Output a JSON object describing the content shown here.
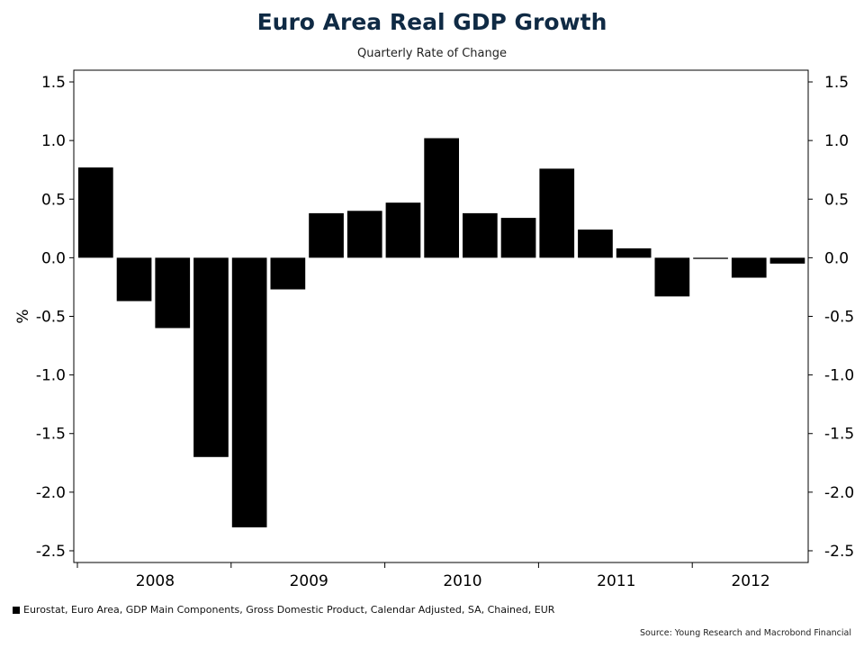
{
  "chart_data": {
    "type": "bar",
    "title": "Euro Area Real GDP Growth",
    "subtitle": "Quarterly Rate of Change",
    "ylabel": "%",
    "ylim": [
      -2.6,
      1.6
    ],
    "yticks": [
      1.5,
      1.0,
      0.5,
      0.0,
      -0.5,
      -1.0,
      -1.5,
      -2.0,
      -2.5
    ],
    "ytick_labels": [
      "1.5",
      "1.0",
      "0.5",
      "0.0",
      "-0.5",
      "-1.0",
      "-1.5",
      "-2.0",
      "-2.5"
    ],
    "year_labels": [
      "2008",
      "2009",
      "2010",
      "2011",
      "2012"
    ],
    "quarters_per_year": 4,
    "series": [
      {
        "name": "Eurostat, Euro Area, GDP Main Components, Gross Domestic Product, Calendar Adjusted, SA, Chained, EUR",
        "color": "#000000",
        "values": [
          0.77,
          -0.37,
          -0.6,
          -1.7,
          -2.3,
          -0.27,
          0.38,
          0.4,
          0.47,
          1.02,
          0.38,
          0.34,
          0.76,
          0.24,
          0.08,
          -0.33,
          -0.01,
          -0.17,
          -0.05
        ]
      }
    ],
    "grid": false,
    "legend_position": "bottom-left"
  },
  "source_text": "Source: Young Research and Macrobond Financial"
}
